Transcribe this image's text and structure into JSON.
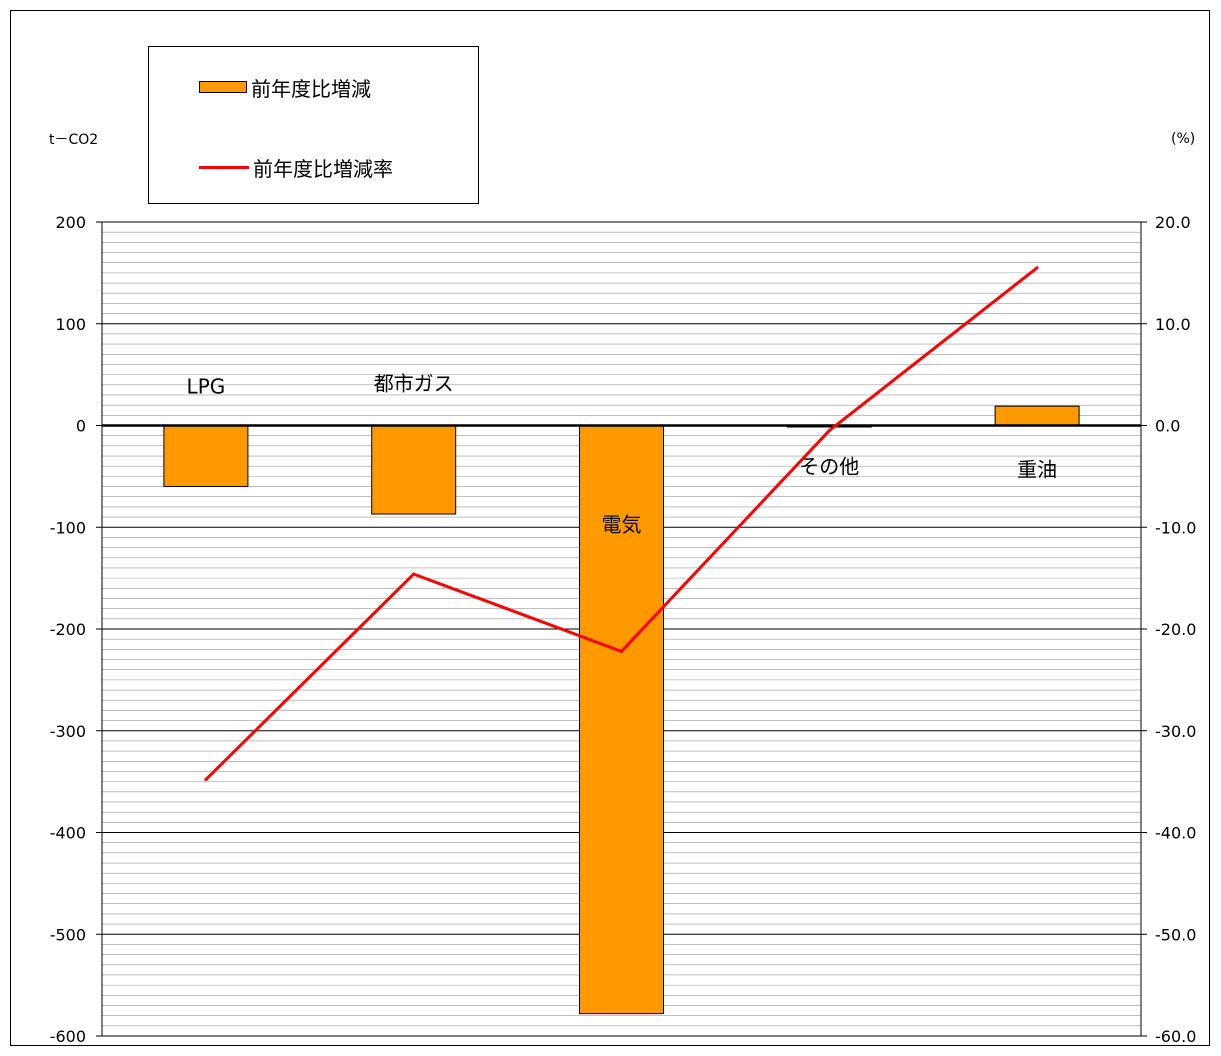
{
  "chart_data": {
    "type": "bar",
    "categories": [
      "LPG",
      "都市ガス",
      "電気",
      "その他",
      "重油"
    ],
    "series": [
      {
        "name": "前年度比増減",
        "type": "bar",
        "axis": "left",
        "color": "#FF9900",
        "values": [
          -60,
          -87,
          -578,
          -1,
          19
        ]
      },
      {
        "name": "前年度比増減率",
        "type": "line",
        "axis": "right",
        "color": "#FF0000",
        "values": [
          -34.8,
          -14.6,
          -22.2,
          -0.5,
          15.5
        ]
      }
    ],
    "y_left": {
      "label": "t－CO2",
      "min": -600,
      "max": 200,
      "step": 100,
      "ticks": [
        "200",
        "100",
        "0",
        "-100",
        "-200",
        "-300",
        "-400",
        "-500",
        "-600"
      ]
    },
    "y_right": {
      "label": "(%)",
      "min": -60,
      "max": 20,
      "step": 10,
      "ticks": [
        "20.0",
        "10.0",
        "0.0",
        "-10.0",
        "-20.0",
        "-30.0",
        "-40.0",
        "-50.0",
        "-60.0"
      ]
    },
    "legend": {
      "position": "top-left",
      "entries": [
        "前年度比増減",
        "前年度比増減率"
      ]
    },
    "grid": true
  }
}
